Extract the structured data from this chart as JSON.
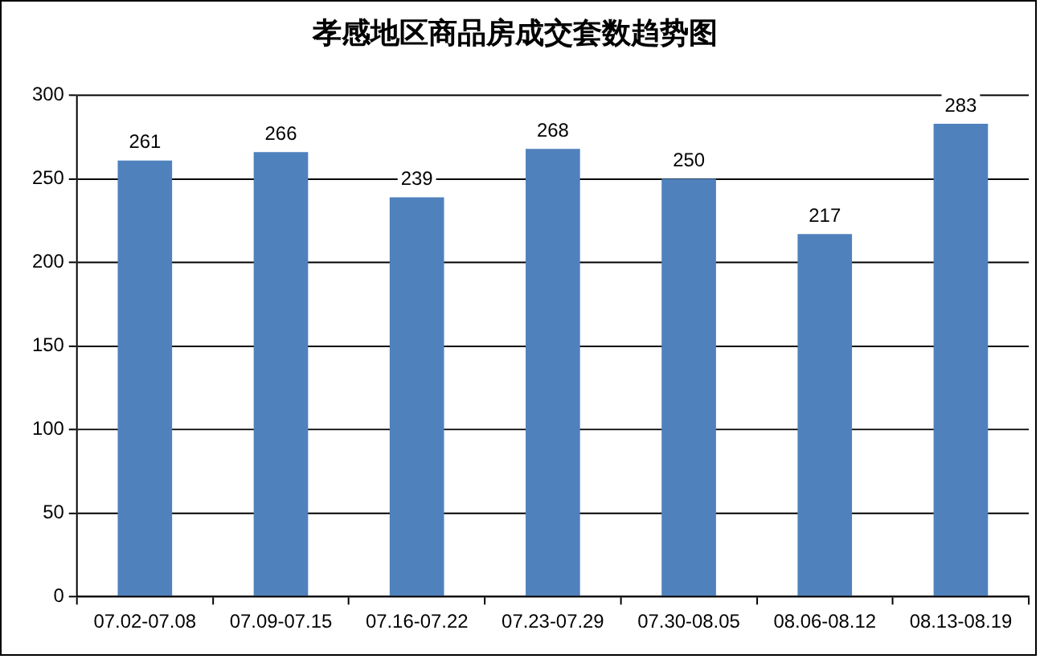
{
  "chart_data": {
    "type": "bar",
    "title": "孝感地区商品房成交套数趋势图",
    "categories": [
      "07.02-07.08",
      "07.09-07.15",
      "07.16-07.22",
      "07.23-07.29",
      "07.30-08.05",
      "08.06-08.12",
      "08.13-08.19"
    ],
    "values": [
      261,
      266,
      239,
      268,
      250,
      217,
      283
    ],
    "color": "#4f81bd",
    "ylim": [
      0,
      300
    ],
    "yticks": [
      0,
      50,
      100,
      150,
      200,
      250,
      300
    ],
    "grid": "y",
    "legend": false,
    "data_labels": true
  }
}
